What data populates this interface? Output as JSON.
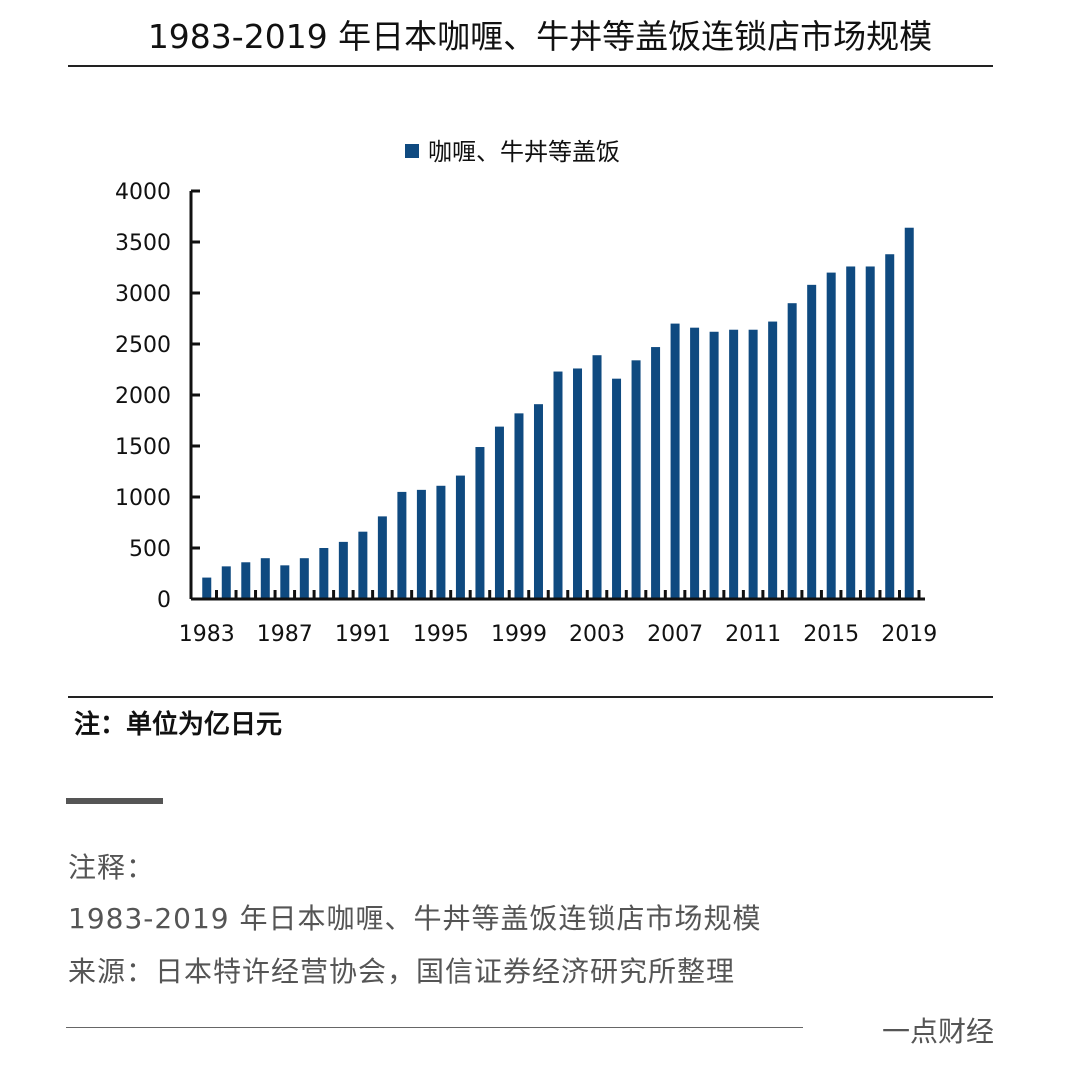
{
  "page": {
    "note": "注：单位为亿日元",
    "caption_heading": "注释：",
    "caption_title": "1983-2019 年日本咖喱、牛丼等盖饭连锁店市场规模",
    "caption_source": "来源：日本特许经营协会，国信证券经济研究所整理",
    "brand": "一点财经"
  },
  "chart_data": {
    "type": "bar",
    "title": "1983-2019 年日本咖喱、牛丼等盖饭连锁店市场规模",
    "legend": [
      "咖喱、牛丼等盖饭"
    ],
    "legend_position": "top-center",
    "color": "#0f4a80",
    "xlabel": "",
    "ylabel": "",
    "ylim": [
      0,
      4000
    ],
    "yticks": [
      0,
      500,
      1000,
      1500,
      2000,
      2500,
      3000,
      3500,
      4000
    ],
    "xtick_labels": [
      "1983",
      "1987",
      "1991",
      "1995",
      "1999",
      "2003",
      "2007",
      "2011",
      "2015",
      "2019"
    ],
    "categories": [
      "1983",
      "1984",
      "1985",
      "1986",
      "1987",
      "1988",
      "1989",
      "1990",
      "1991",
      "1992",
      "1993",
      "1994",
      "1995",
      "1996",
      "1997",
      "1998",
      "1999",
      "2000",
      "2001",
      "2002",
      "2003",
      "2004",
      "2005",
      "2006",
      "2007",
      "2008",
      "2009",
      "2010",
      "2011",
      "2012",
      "2013",
      "2014",
      "2015",
      "2016",
      "2017",
      "2018",
      "2019"
    ],
    "series": [
      {
        "name": "咖喱、牛丼等盖饭",
        "values": [
          210,
          320,
          360,
          400,
          330,
          400,
          500,
          560,
          660,
          810,
          1050,
          1070,
          1110,
          1210,
          1490,
          1690,
          1820,
          1910,
          2230,
          2260,
          2390,
          2160,
          2340,
          2470,
          2700,
          2660,
          2620,
          2640,
          2640,
          2720,
          2900,
          3080,
          3200,
          3260,
          3260,
          3380,
          3640
        ]
      }
    ]
  }
}
